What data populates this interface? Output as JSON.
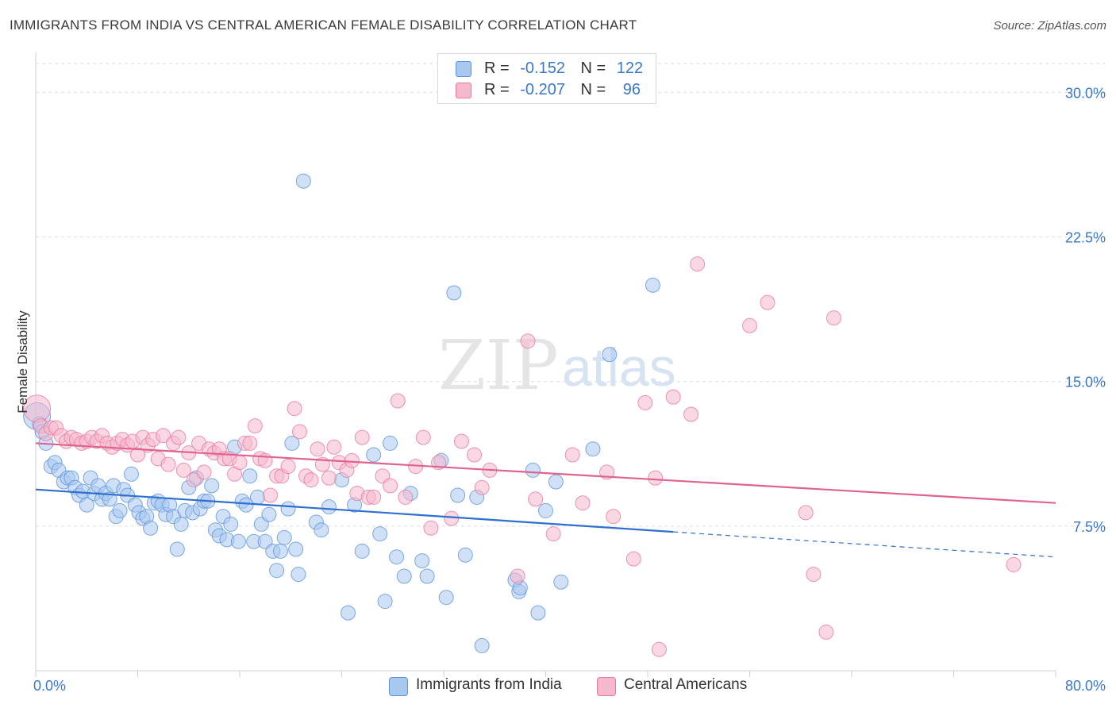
{
  "header": {
    "title": "IMMIGRANTS FROM INDIA VS CENTRAL AMERICAN FEMALE DISABILITY CORRELATION CHART",
    "source": "Source: ZipAtlas.com"
  },
  "watermark": {
    "zip": "ZIP",
    "atlas": "atlas"
  },
  "legend_top": {
    "rows": [
      {
        "r_label": "R =",
        "r_value": "-0.152",
        "n_label": "N =",
        "n_value": "122",
        "color": "#a9c8f0"
      },
      {
        "r_label": "R =",
        "r_value": "-0.207",
        "n_label": "N =",
        "n_value": "96",
        "color": "#f6b8cc"
      }
    ]
  },
  "legend_bottom": {
    "items": [
      {
        "label": "Immigrants from India",
        "color": "#a9c8f0"
      },
      {
        "label": "Central Americans",
        "color": "#f6b8cc"
      }
    ]
  },
  "chart_data": {
    "type": "scatter",
    "title": "IMMIGRANTS FROM INDIA VS CENTRAL AMERICAN FEMALE DISABILITY CORRELATION CHART",
    "xlabel": "",
    "ylabel": "Female Disability",
    "xlim": [
      0,
      80
    ],
    "ylim": [
      0,
      31.5
    ],
    "x_tick_labels": [
      "0.0%",
      "80.0%"
    ],
    "y_ticks": [
      7.5,
      15.0,
      22.5,
      30.0
    ],
    "y_tick_labels": [
      "7.5%",
      "15.0%",
      "22.5%",
      "30.0%"
    ],
    "grid": "horizontal dashed",
    "legend_placement": "top-center",
    "series": [
      {
        "name": "Immigrants from India",
        "color": "#5b93db",
        "fill": "#a9c8f0",
        "trend": {
          "x0": 0,
          "y0": 9.4,
          "x1": 50,
          "y1": 7.2,
          "dash_x1": 80,
          "dash_y1": 5.9
        },
        "points": [
          [
            0.1,
            13.2
          ],
          [
            0.3,
            12.8
          ],
          [
            0.5,
            12.4
          ],
          [
            0.8,
            11.8
          ],
          [
            1.2,
            10.6
          ],
          [
            1.5,
            10.8
          ],
          [
            1.8,
            10.4
          ],
          [
            2.2,
            9.8
          ],
          [
            2.5,
            10.0
          ],
          [
            2.8,
            10.0
          ],
          [
            3.1,
            9.5
          ],
          [
            3.4,
            9.1
          ],
          [
            3.7,
            9.3
          ],
          [
            4.0,
            8.6
          ],
          [
            4.3,
            10.0
          ],
          [
            4.6,
            9.2
          ],
          [
            4.9,
            9.6
          ],
          [
            5.2,
            8.9
          ],
          [
            5.5,
            9.2
          ],
          [
            5.8,
            8.9
          ],
          [
            6.1,
            9.6
          ],
          [
            6.3,
            8.0
          ],
          [
            6.6,
            8.3
          ],
          [
            6.9,
            9.4
          ],
          [
            7.2,
            9.1
          ],
          [
            7.5,
            10.2
          ],
          [
            7.8,
            8.6
          ],
          [
            8.1,
            8.2
          ],
          [
            8.4,
            7.9
          ],
          [
            8.7,
            8.0
          ],
          [
            9.0,
            7.4
          ],
          [
            9.3,
            8.7
          ],
          [
            9.6,
            8.8
          ],
          [
            9.9,
            8.6
          ],
          [
            10.2,
            8.1
          ],
          [
            10.5,
            8.6
          ],
          [
            10.8,
            8.0
          ],
          [
            11.1,
            6.3
          ],
          [
            11.4,
            7.6
          ],
          [
            11.7,
            8.3
          ],
          [
            12.0,
            9.5
          ],
          [
            12.3,
            8.2
          ],
          [
            12.6,
            10.0
          ],
          [
            12.9,
            8.4
          ],
          [
            13.2,
            8.8
          ],
          [
            13.5,
            8.8
          ],
          [
            13.8,
            9.6
          ],
          [
            14.1,
            7.3
          ],
          [
            14.4,
            7.0
          ],
          [
            14.7,
            8.0
          ],
          [
            15.0,
            6.8
          ],
          [
            15.3,
            7.6
          ],
          [
            15.6,
            11.6
          ],
          [
            15.9,
            6.7
          ],
          [
            16.2,
            8.8
          ],
          [
            16.5,
            8.6
          ],
          [
            16.8,
            10.1
          ],
          [
            17.1,
            6.7
          ],
          [
            17.4,
            9.0
          ],
          [
            17.7,
            7.6
          ],
          [
            18.0,
            6.7
          ],
          [
            18.3,
            8.1
          ],
          [
            18.6,
            6.2
          ],
          [
            18.9,
            5.2
          ],
          [
            19.2,
            6.2
          ],
          [
            19.5,
            6.9
          ],
          [
            19.8,
            8.4
          ],
          [
            20.1,
            11.8
          ],
          [
            20.4,
            6.3
          ],
          [
            20.6,
            5.0
          ],
          [
            21.0,
            25.4
          ],
          [
            22.0,
            7.7
          ],
          [
            22.4,
            7.3
          ],
          [
            23.0,
            8.5
          ],
          [
            24.0,
            9.9
          ],
          [
            24.5,
            3.0
          ],
          [
            25.0,
            8.6
          ],
          [
            25.6,
            6.2
          ],
          [
            26.5,
            11.2
          ],
          [
            27.0,
            7.1
          ],
          [
            27.4,
            3.6
          ],
          [
            27.8,
            11.8
          ],
          [
            28.3,
            5.9
          ],
          [
            28.9,
            4.9
          ],
          [
            29.4,
            9.2
          ],
          [
            30.3,
            5.7
          ],
          [
            30.7,
            4.9
          ],
          [
            31.8,
            10.9
          ],
          [
            32.2,
            3.8
          ],
          [
            32.8,
            19.6
          ],
          [
            33.1,
            9.1
          ],
          [
            33.7,
            6.0
          ],
          [
            34.6,
            9.0
          ],
          [
            35.0,
            1.3
          ],
          [
            37.6,
            4.7
          ],
          [
            37.9,
            4.1
          ],
          [
            38.0,
            4.3
          ],
          [
            39.0,
            10.4
          ],
          [
            39.4,
            3.0
          ],
          [
            40.0,
            8.3
          ],
          [
            40.8,
            9.8
          ],
          [
            41.2,
            4.6
          ],
          [
            43.7,
            11.5
          ],
          [
            45.0,
            16.4
          ],
          [
            48.4,
            20.0
          ]
        ]
      },
      {
        "name": "Central Americans",
        "color": "#e8789f",
        "fill": "#f6b8cc",
        "trend": {
          "x0": 0,
          "y0": 11.8,
          "x1": 80,
          "y1": 8.7
        },
        "points": [
          [
            0.1,
            13.6
          ],
          [
            0.4,
            12.7
          ],
          [
            0.8,
            12.3
          ],
          [
            1.2,
            12.6
          ],
          [
            1.6,
            12.6
          ],
          [
            2.0,
            12.2
          ],
          [
            2.4,
            11.9
          ],
          [
            2.8,
            12.1
          ],
          [
            3.2,
            12.0
          ],
          [
            3.6,
            11.8
          ],
          [
            4.0,
            11.9
          ],
          [
            4.4,
            12.1
          ],
          [
            4.8,
            11.9
          ],
          [
            5.2,
            12.2
          ],
          [
            5.6,
            11.8
          ],
          [
            6.0,
            11.6
          ],
          [
            6.4,
            11.8
          ],
          [
            6.8,
            12.0
          ],
          [
            7.2,
            11.7
          ],
          [
            7.6,
            11.9
          ],
          [
            8.0,
            11.2
          ],
          [
            8.4,
            12.1
          ],
          [
            8.8,
            11.7
          ],
          [
            9.2,
            12.0
          ],
          [
            9.6,
            11.0
          ],
          [
            10.0,
            12.2
          ],
          [
            10.4,
            10.7
          ],
          [
            10.8,
            11.8
          ],
          [
            11.2,
            12.1
          ],
          [
            11.6,
            10.4
          ],
          [
            12.0,
            11.3
          ],
          [
            12.4,
            9.9
          ],
          [
            12.8,
            11.8
          ],
          [
            13.2,
            10.3
          ],
          [
            13.6,
            11.5
          ],
          [
            14.0,
            11.3
          ],
          [
            14.4,
            11.5
          ],
          [
            14.8,
            11.0
          ],
          [
            15.2,
            11.0
          ],
          [
            15.6,
            10.2
          ],
          [
            16.0,
            10.8
          ],
          [
            16.4,
            11.8
          ],
          [
            16.8,
            11.8
          ],
          [
            17.2,
            12.7
          ],
          [
            17.6,
            11.0
          ],
          [
            18.0,
            10.9
          ],
          [
            18.4,
            9.1
          ],
          [
            18.9,
            10.1
          ],
          [
            19.3,
            10.1
          ],
          [
            19.8,
            10.6
          ],
          [
            20.3,
            13.6
          ],
          [
            20.7,
            12.4
          ],
          [
            21.2,
            10.1
          ],
          [
            21.6,
            9.9
          ],
          [
            22.1,
            11.5
          ],
          [
            22.5,
            10.7
          ],
          [
            23.0,
            10.0
          ],
          [
            23.4,
            11.6
          ],
          [
            23.8,
            10.8
          ],
          [
            24.4,
            10.4
          ],
          [
            24.8,
            10.9
          ],
          [
            25.2,
            9.2
          ],
          [
            25.6,
            12.1
          ],
          [
            26.1,
            9.0
          ],
          [
            26.5,
            9.0
          ],
          [
            27.2,
            10.1
          ],
          [
            27.8,
            9.6
          ],
          [
            28.4,
            14.0
          ],
          [
            29.0,
            9.0
          ],
          [
            29.8,
            10.6
          ],
          [
            30.4,
            12.1
          ],
          [
            31.0,
            7.4
          ],
          [
            31.6,
            10.8
          ],
          [
            32.6,
            7.9
          ],
          [
            33.4,
            11.9
          ],
          [
            34.4,
            11.2
          ],
          [
            35.0,
            9.5
          ],
          [
            35.6,
            10.4
          ],
          [
            37.8,
            4.9
          ],
          [
            38.6,
            17.1
          ],
          [
            39.2,
            8.9
          ],
          [
            40.6,
            7.1
          ],
          [
            42.1,
            11.2
          ],
          [
            42.9,
            8.7
          ],
          [
            44.8,
            10.3
          ],
          [
            45.3,
            8.0
          ],
          [
            46.9,
            5.8
          ],
          [
            47.8,
            13.9
          ],
          [
            48.6,
            10.0
          ],
          [
            48.9,
            1.1
          ],
          [
            50.0,
            14.2
          ],
          [
            51.4,
            13.3
          ],
          [
            51.9,
            21.1
          ],
          [
            56.0,
            17.9
          ],
          [
            57.4,
            19.1
          ],
          [
            60.4,
            8.2
          ],
          [
            61.0,
            5.0
          ],
          [
            62.0,
            2.0
          ],
          [
            62.6,
            18.3
          ],
          [
            76.7,
            5.5
          ]
        ]
      }
    ]
  }
}
